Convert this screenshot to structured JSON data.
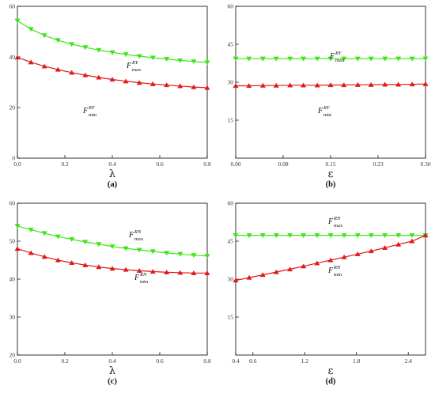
{
  "chart_data": [
    {
      "type": "line",
      "caption": "(a)",
      "xlabel": "λ",
      "xlim": [
        0,
        0.8
      ],
      "ylim": [
        0,
        60
      ],
      "xticks": [
        0.0,
        0.2,
        0.4,
        0.6,
        0.8
      ],
      "xtick_labels": [
        "0.0",
        "0.2",
        "0.4",
        "0.6",
        "0.8"
      ],
      "yticks": [
        0,
        20,
        40,
        60
      ],
      "ytick_labels": [
        "0",
        "20",
        "40",
        "60"
      ],
      "grid": false,
      "series": [
        {
          "label_base": "F",
          "label_sup": "RY",
          "label_sub": "max",
          "color": "#3ee619",
          "marker": "triangle-down",
          "x": [
            0.0,
            0.057,
            0.114,
            0.171,
            0.229,
            0.286,
            0.343,
            0.4,
            0.457,
            0.514,
            0.571,
            0.629,
            0.686,
            0.743,
            0.8
          ],
          "y": [
            54.3,
            51.0,
            48.5,
            46.6,
            45.0,
            43.8,
            42.7,
            41.8,
            41.0,
            40.3,
            39.7,
            39.2,
            38.6,
            38.2,
            37.8
          ]
        },
        {
          "label_base": "F",
          "label_sup": "RY",
          "label_sub": "min",
          "color": "#e01a1a",
          "marker": "triangle-up",
          "x": [
            0.0,
            0.057,
            0.114,
            0.171,
            0.229,
            0.286,
            0.343,
            0.4,
            0.457,
            0.514,
            0.571,
            0.629,
            0.686,
            0.743,
            0.8
          ],
          "y": [
            39.8,
            37.9,
            36.3,
            35.0,
            33.8,
            32.8,
            31.9,
            31.1,
            30.4,
            29.8,
            29.3,
            28.9,
            28.5,
            28.1,
            27.8
          ]
        }
      ]
    },
    {
      "type": "line",
      "caption": "(b)",
      "xlabel": "ε",
      "xlim": [
        0,
        0.3
      ],
      "ylim": [
        0,
        60
      ],
      "xticks": [
        0.0,
        0.075,
        0.15,
        0.225,
        0.3
      ],
      "xtick_labels": [
        "0.00",
        "0.08",
        "0.15",
        "0.23",
        "0.30"
      ],
      "yticks": [
        15,
        30,
        45,
        60
      ],
      "ytick_labels": [
        "15",
        "30",
        "45",
        "60"
      ],
      "grid": false,
      "series": [
        {
          "label_base": "F",
          "label_sup": "RY",
          "label_sub": "max",
          "color": "#3ee619",
          "marker": "triangle-down",
          "x": [
            0.0,
            0.021,
            0.043,
            0.064,
            0.086,
            0.107,
            0.129,
            0.15,
            0.171,
            0.193,
            0.214,
            0.236,
            0.257,
            0.279,
            0.3
          ],
          "y": [
            39.3,
            39.3,
            39.3,
            39.3,
            39.3,
            39.3,
            39.3,
            39.3,
            39.3,
            39.3,
            39.3,
            39.3,
            39.3,
            39.3,
            39.3
          ]
        },
        {
          "label_base": "F",
          "label_sup": "RY",
          "label_sub": "min",
          "color": "#e01a1a",
          "marker": "triangle-up",
          "x": [
            0.0,
            0.021,
            0.043,
            0.064,
            0.086,
            0.107,
            0.129,
            0.15,
            0.171,
            0.193,
            0.214,
            0.236,
            0.257,
            0.279,
            0.3
          ],
          "y": [
            28.6,
            28.6,
            28.7,
            28.7,
            28.8,
            28.8,
            28.8,
            28.9,
            28.9,
            29.0,
            29.0,
            29.1,
            29.1,
            29.2,
            29.3
          ]
        }
      ]
    },
    {
      "type": "line",
      "caption": "(c)",
      "xlabel": "λ",
      "xlim": [
        0,
        0.8
      ],
      "ylim": [
        20,
        60
      ],
      "xticks": [
        0.0,
        0.2,
        0.4,
        0.6,
        0.8
      ],
      "xtick_labels": [
        "0.0",
        "0.2",
        "0.4",
        "0.6",
        "0.8"
      ],
      "yticks": [
        20,
        30,
        40,
        50,
        60
      ],
      "ytick_labels": [
        "20",
        "30",
        "40",
        "50",
        "60"
      ],
      "grid": false,
      "series": [
        {
          "label_base": "F",
          "label_sup": "RN",
          "label_sub": "max",
          "color": "#3ee619",
          "marker": "triangle-down",
          "x": [
            0.0,
            0.057,
            0.114,
            0.171,
            0.229,
            0.286,
            0.343,
            0.4,
            0.457,
            0.514,
            0.571,
            0.629,
            0.686,
            0.743,
            0.8
          ],
          "y": [
            54.0,
            53.0,
            52.1,
            51.2,
            50.5,
            49.8,
            49.2,
            48.6,
            48.1,
            47.7,
            47.3,
            46.9,
            46.6,
            46.3,
            46.1
          ]
        },
        {
          "label_base": "F",
          "label_sup": "RN",
          "label_sub": "min",
          "color": "#e01a1a",
          "marker": "triangle-up",
          "x": [
            0.0,
            0.057,
            0.114,
            0.171,
            0.229,
            0.286,
            0.343,
            0.4,
            0.457,
            0.514,
            0.571,
            0.629,
            0.686,
            0.743,
            0.8
          ],
          "y": [
            48.0,
            46.9,
            45.9,
            45.0,
            44.3,
            43.7,
            43.2,
            42.8,
            42.5,
            42.2,
            42.0,
            41.8,
            41.7,
            41.6,
            41.6
          ]
        }
      ]
    },
    {
      "type": "line",
      "caption": "(d)",
      "xlabel": "ε",
      "xlim": [
        0.4,
        2.6
      ],
      "ylim": [
        0,
        60
      ],
      "xticks": [
        0.4,
        0.6,
        1.2,
        1.8,
        2.4
      ],
      "xtick_labels": [
        "0.4",
        "0.6",
        "1.2",
        "1.8",
        "2.4"
      ],
      "yticks": [
        15,
        30,
        45,
        60
      ],
      "ytick_labels": [
        "15",
        "30",
        "45",
        "60"
      ],
      "grid": false,
      "series": [
        {
          "label_base": "F",
          "label_sup": "RN",
          "label_sub": "max",
          "color": "#3ee619",
          "marker": "triangle-down",
          "x": [
            0.4,
            0.557,
            0.714,
            0.871,
            1.029,
            1.186,
            1.343,
            1.5,
            1.657,
            1.814,
            1.971,
            2.129,
            2.286,
            2.443,
            2.6
          ],
          "y": [
            47.3,
            47.3,
            47.3,
            47.3,
            47.3,
            47.3,
            47.3,
            47.3,
            47.3,
            47.3,
            47.3,
            47.3,
            47.3,
            47.3,
            47.3
          ]
        },
        {
          "label_base": "F",
          "label_sup": "RN",
          "label_sub": "min",
          "color": "#e01a1a",
          "marker": "triangle-up",
          "x": [
            0.4,
            0.557,
            0.714,
            0.871,
            1.029,
            1.186,
            1.343,
            1.5,
            1.657,
            1.814,
            1.971,
            2.129,
            2.286,
            2.443,
            2.6
          ],
          "y": [
            29.5,
            30.6,
            31.7,
            32.8,
            33.9,
            35.1,
            36.3,
            37.5,
            38.7,
            39.9,
            41.1,
            42.4,
            43.7,
            45.0,
            47.3
          ]
        }
      ]
    }
  ]
}
